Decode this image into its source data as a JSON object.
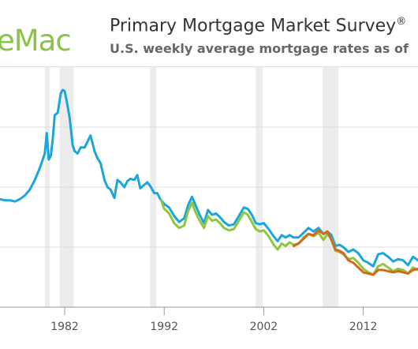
{
  "header": {
    "logo_text": "eMac",
    "title": "Primary Mortgage Market Survey",
    "title_mark": "®",
    "subtitle": "U.S. weekly average mortgage rates as of"
  },
  "colors": {
    "series_30yr": "#1aa6dc",
    "series_15yr": "#8dc63f",
    "series_arm": "#d3691f",
    "recession_band": "#ececec",
    "gridline": "#dcdcdc",
    "axis": "#999999"
  },
  "chart_data": {
    "type": "line",
    "title": "Primary Mortgage Market Survey®",
    "subtitle": "U.S. weekly average mortgage rates as of",
    "xlabel": "",
    "ylabel": "",
    "x_tick_labels": [
      "1982",
      "1992",
      "2002",
      "2012"
    ],
    "xlim": [
      1975.5,
      2017.5
    ],
    "ylim": [
      0,
      20
    ],
    "y_gridlines": [
      5,
      10,
      15
    ],
    "grid": true,
    "legend": "none",
    "recession_bands": [
      [
        1980.0,
        1980.5
      ],
      [
        1981.5,
        1982.9
      ],
      [
        1990.6,
        1991.2
      ],
      [
        2001.2,
        2001.9
      ],
      [
        2007.9,
        2009.5
      ]
    ],
    "series": [
      {
        "key": "30yr",
        "x": [
          1975.5,
          1976.0,
          1976.5,
          1977.0,
          1977.5,
          1978.0,
          1978.5,
          1979.0,
          1979.5,
          1980.0,
          1980.2,
          1980.4,
          1980.6,
          1980.8,
          1981.0,
          1981.3,
          1981.6,
          1981.8,
          1982.0,
          1982.2,
          1982.5,
          1982.8,
          1983.0,
          1983.3,
          1983.6,
          1984.0,
          1984.3,
          1984.6,
          1985.0,
          1985.3,
          1985.6,
          1986.0,
          1986.3,
          1986.6,
          1987.0,
          1987.3,
          1987.6,
          1988.0,
          1988.3,
          1988.6,
          1989.0,
          1989.3,
          1989.6,
          1990.0,
          1990.3,
          1990.6,
          1991.0,
          1991.3,
          1991.6,
          1992.0,
          1992.5,
          1993.0,
          1993.5,
          1994.0,
          1994.4,
          1994.8,
          1995.1,
          1995.5,
          1996.0,
          1996.4,
          1996.8,
          1997.2,
          1997.6,
          1998.0,
          1998.5,
          1999.0,
          1999.5,
          2000.0,
          2000.4,
          2000.8,
          2001.2,
          2001.6,
          2002.0,
          2002.5,
          2003.0,
          2003.4,
          2003.8,
          2004.2,
          2004.6,
          2005.0,
          2005.5,
          2006.0,
          2006.5,
          2007.0,
          2007.5,
          2008.0,
          2008.4,
          2008.8,
          2009.2,
          2009.6,
          2010.0,
          2010.5,
          2011.0,
          2011.5,
          2012.0,
          2012.5,
          2013.0,
          2013.5,
          2014.0,
          2014.5,
          2015.0,
          2015.5,
          2016.0,
          2016.5,
          2017.0,
          2017.5
        ],
        "values": [
          9.0,
          8.9,
          8.9,
          8.8,
          9.0,
          9.3,
          9.8,
          10.6,
          11.6,
          12.8,
          14.5,
          12.3,
          12.6,
          14.0,
          16.0,
          16.2,
          17.8,
          18.1,
          18.0,
          17.2,
          15.8,
          13.5,
          13.0,
          12.8,
          13.3,
          13.3,
          13.8,
          14.3,
          13.0,
          12.4,
          12.0,
          10.6,
          10.0,
          9.8,
          9.1,
          10.6,
          10.4,
          10.0,
          10.5,
          10.7,
          10.6,
          11.0,
          9.9,
          10.2,
          10.4,
          10.1,
          9.5,
          9.5,
          9.0,
          8.6,
          8.3,
          7.6,
          7.1,
          7.4,
          8.5,
          9.2,
          8.6,
          7.8,
          7.0,
          8.1,
          7.7,
          7.8,
          7.5,
          7.1,
          6.8,
          6.9,
          7.6,
          8.3,
          8.2,
          7.7,
          7.0,
          6.9,
          7.0,
          6.5,
          5.9,
          5.5,
          6.0,
          5.8,
          6.0,
          5.8,
          5.8,
          6.2,
          6.6,
          6.3,
          6.6,
          6.1,
          6.3,
          6.0,
          5.1,
          5.2,
          5.0,
          4.6,
          4.8,
          4.5,
          3.9,
          3.7,
          3.4,
          4.4,
          4.5,
          4.2,
          3.8,
          4.0,
          3.9,
          3.5,
          4.2,
          3.9
        ]
      },
      {
        "key": "15yr",
        "x": [
          1991.7,
          1992.0,
          1992.5,
          1993.0,
          1993.5,
          1994.0,
          1994.4,
          1994.8,
          1995.1,
          1995.5,
          1996.0,
          1996.4,
          1996.8,
          1997.2,
          1997.6,
          1998.0,
          1998.5,
          1999.0,
          1999.5,
          2000.0,
          2000.4,
          2000.8,
          2001.2,
          2001.6,
          2002.0,
          2002.5,
          2003.0,
          2003.4,
          2003.8,
          2004.2,
          2004.6,
          2005.0,
          2005.5,
          2006.0,
          2006.5,
          2007.0,
          2007.5,
          2008.0,
          2008.4,
          2008.8,
          2009.2,
          2009.6,
          2010.0,
          2010.5,
          2011.0,
          2011.5,
          2012.0,
          2012.5,
          2013.0,
          2013.5,
          2014.0,
          2014.5,
          2015.0,
          2015.5,
          2016.0,
          2016.5,
          2017.0,
          2017.5
        ],
        "values": [
          8.9,
          8.2,
          7.8,
          7.0,
          6.6,
          6.8,
          8.0,
          8.7,
          8.0,
          7.3,
          6.6,
          7.6,
          7.2,
          7.3,
          7.0,
          6.6,
          6.4,
          6.5,
          7.2,
          7.9,
          7.7,
          7.1,
          6.5,
          6.3,
          6.4,
          5.9,
          5.2,
          4.8,
          5.3,
          5.1,
          5.4,
          5.2,
          5.3,
          5.8,
          6.1,
          5.9,
          6.2,
          5.6,
          6.1,
          5.7,
          4.7,
          4.6,
          4.4,
          4.0,
          4.1,
          3.7,
          3.2,
          2.9,
          2.7,
          3.4,
          3.6,
          3.3,
          3.0,
          3.2,
          3.1,
          2.8,
          3.3,
          3.1
        ]
      },
      {
        "key": "arm",
        "x": [
          2005.0,
          2005.5,
          2006.0,
          2006.5,
          2007.0,
          2007.5,
          2008.0,
          2008.4,
          2008.8,
          2009.2,
          2009.6,
          2010.0,
          2010.5,
          2011.0,
          2011.5,
          2012.0,
          2012.5,
          2013.0,
          2013.5,
          2014.0,
          2014.5,
          2015.0,
          2015.5,
          2016.0,
          2016.5,
          2017.0,
          2017.5
        ],
        "values": [
          5.1,
          5.3,
          5.7,
          6.1,
          6.0,
          6.4,
          6.1,
          6.3,
          5.6,
          4.8,
          4.7,
          4.5,
          3.9,
          3.7,
          3.3,
          2.9,
          2.8,
          2.7,
          3.1,
          3.1,
          3.0,
          2.9,
          3.0,
          2.9,
          2.8,
          3.1,
          3.2
        ]
      }
    ]
  }
}
